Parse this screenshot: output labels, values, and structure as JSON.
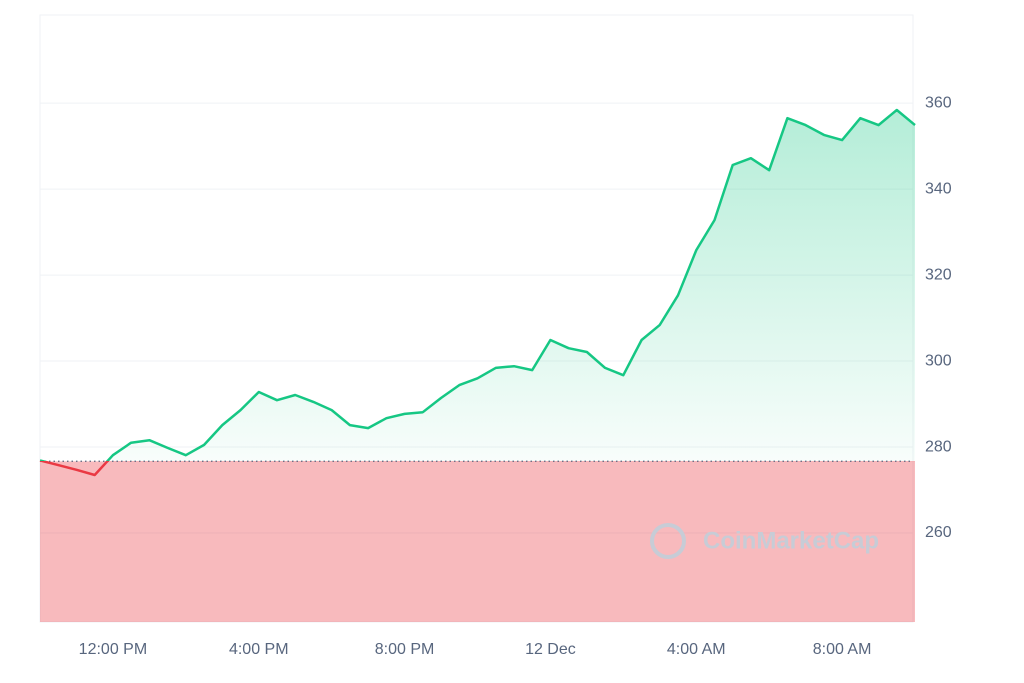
{
  "chart_data": {
    "type": "line",
    "watermark": "CoinMarketCap",
    "categories": [
      null,
      null,
      null,
      null,
      "12:00 PM",
      null,
      null,
      null,
      null,
      null,
      null,
      null,
      "4:00 PM",
      null,
      null,
      null,
      null,
      null,
      null,
      null,
      "8:00 PM",
      null,
      null,
      null,
      null,
      null,
      null,
      null,
      "12 Dec",
      null,
      null,
      null,
      null,
      null,
      null,
      null,
      "4:00 AM",
      null,
      null,
      null,
      null,
      null,
      null,
      null,
      "8:00 AM",
      null,
      null,
      null,
      null
    ],
    "series": [
      {
        "values": [
          276.9,
          275.8,
          274.7,
          273.5,
          278.1,
          281,
          281.6,
          279.8,
          278.1,
          280.5,
          285.1,
          288.6,
          292.8,
          290.9,
          292.1,
          290.5,
          288.6,
          285.1,
          284.4,
          286.7,
          287.7,
          288.1,
          291.4,
          294.4,
          296,
          298.4,
          298.8,
          297.9,
          304.9,
          303,
          302.1,
          298.4,
          296.7,
          304.9,
          308.4,
          315.3,
          325.8,
          332.8,
          345.6,
          347.2,
          344.4,
          356.5,
          354.9,
          352.6,
          351.4,
          356.5,
          354.9,
          358.4,
          354.9
        ]
      }
    ],
    "baseline": 276.7,
    "up_color": "#16c784",
    "down_color": "#ea3943",
    "ylim": [
      239.3,
      380.5
    ],
    "yticks": [
      260,
      280,
      300,
      320,
      340,
      360
    ],
    "grid": true
  }
}
